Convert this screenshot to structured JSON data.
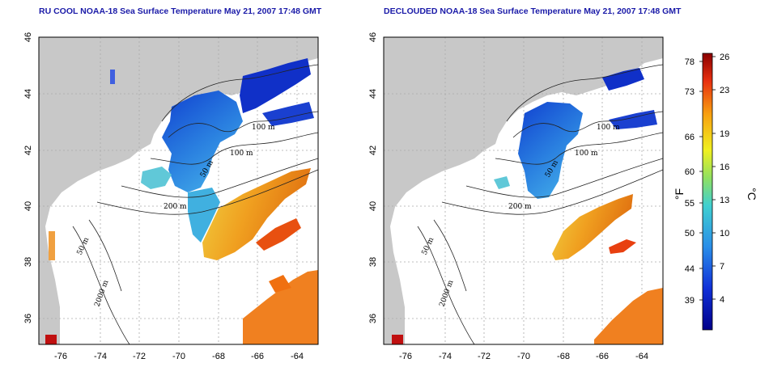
{
  "titles": {
    "left": "RU COOL NOAA-18 Sea Surface Temperature May 21, 2007 17:48 GMT",
    "right": "DECLOUDED NOAA-18 Sea Surface Temperature May 21, 2007 17:48 GMT"
  },
  "axes": {
    "lon_ticks": [
      "-76",
      "-74",
      "-72",
      "-70",
      "-68",
      "-66",
      "-64"
    ],
    "lat_ticks": [
      "46",
      "44",
      "42",
      "40",
      "38",
      "36"
    ]
  },
  "contour_labels": {
    "left": [
      "100 m",
      "100 m",
      "50 m",
      "200 m",
      "50 m",
      "2000 m"
    ],
    "right": [
      "100 m",
      "100 m",
      "50 m",
      "200 m",
      "50 m",
      "2000 m"
    ]
  },
  "colorbar": {
    "fahrenheit_ticks": [
      "78",
      "73",
      "66",
      "60",
      "55",
      "50",
      "44",
      "39"
    ],
    "celsius_ticks": [
      "26",
      "23",
      "19",
      "16",
      "13",
      "10",
      "7",
      "4"
    ],
    "fahrenheit_label": "°F",
    "celsius_label": "°C"
  },
  "colors": {
    "title": "#1a1aa8",
    "land": "#c8c8c8",
    "cold": "#1030c8",
    "mid": "#3aa0e0",
    "warm": "#f0a020",
    "hot": "#c01010"
  }
}
